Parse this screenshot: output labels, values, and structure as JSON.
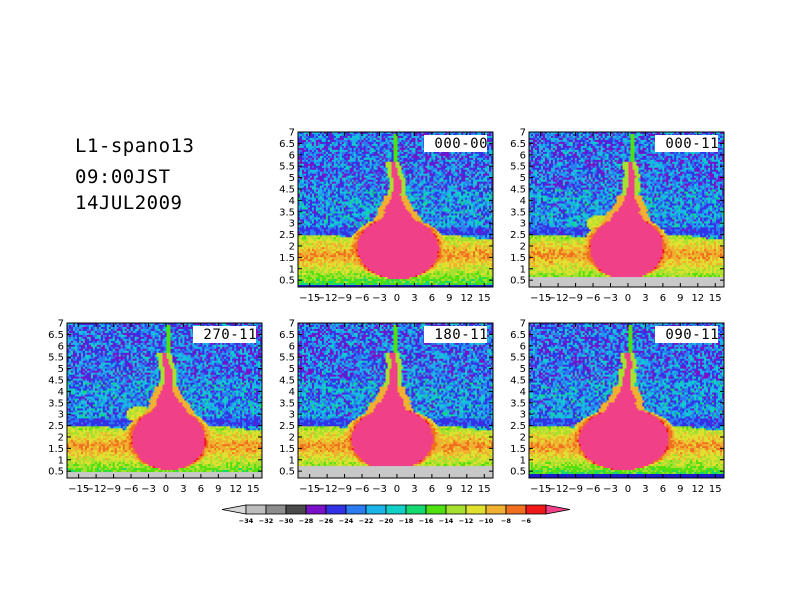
{
  "header": {
    "line1": "L1-spano13",
    "line2": "09:00JST",
    "line3": "14JUL2009"
  },
  "chart_data": {
    "type": "heatmap",
    "x_ticks": [
      -15,
      -12,
      -9,
      -6,
      -3,
      0,
      3,
      6,
      9,
      12,
      15
    ],
    "x_tick_labels": [
      "-15",
      "-12",
      "-9",
      "-6",
      "-3",
      "0",
      "3",
      "6",
      "9",
      "12",
      "15"
    ],
    "y_ticks": [
      0.5,
      1,
      1.5,
      2,
      2.5,
      3,
      3.5,
      4,
      4.5,
      5,
      5.5,
      6,
      6.5,
      7
    ],
    "y_tick_labels": [
      "0.5",
      "1",
      "1.5",
      "2",
      "2.5",
      "3",
      "3.5",
      "4",
      "4.5",
      "5",
      "5.5",
      "6",
      "6.5",
      "7"
    ],
    "xlim": [
      -17,
      16.5
    ],
    "ylim": [
      0.2,
      7
    ],
    "panels": [
      {
        "label": "000-00",
        "row": 0,
        "col": 1,
        "ground": 0.3,
        "groundColor": "#1c1ccc",
        "plume": [
          0.1,
          -0.2,
          -0.4
        ],
        "pool": 1.0,
        "bandLeft": 1.0,
        "bandRight": 1.0,
        "lobe": 0.2
      },
      {
        "label": "000-11",
        "row": 0,
        "col": 2,
        "ground": 0.65,
        "groundColor": "#c8c8c8",
        "plume": [
          -0.2,
          0.3,
          0.6
        ],
        "pool": 0.9,
        "bandLeft": 0.9,
        "bandRight": 1.0,
        "lobe": 0.9
      },
      {
        "label": "270-11",
        "row": 1,
        "col": 0,
        "ground": 0.45,
        "groundColor": "#c8c8c8",
        "plume": [
          0.6,
          0.2,
          0.0
        ],
        "pool": 0.9,
        "bandLeft": 1.0,
        "bandRight": 1.0,
        "lobe": 0.8
      },
      {
        "label": "180-11",
        "row": 1,
        "col": 1,
        "ground": 0.75,
        "groundColor": "#c8c8c8",
        "plume": [
          -1.2,
          -0.8,
          -0.5
        ],
        "pool": 1.0,
        "bandLeft": 1.0,
        "bandRight": 1.0,
        "lobe": 0.0
      },
      {
        "label": "090-11",
        "row": 1,
        "col": 2,
        "ground": 0.35,
        "groundColor": "#1c1ccc",
        "plume": [
          -1.0,
          -0.4,
          0.2
        ],
        "pool": 1.1,
        "bandLeft": 1.0,
        "bandRight": 1.0,
        "lobe": 0.0
      }
    ]
  },
  "colorbar": {
    "labels": [
      "-34",
      "-32",
      "-30",
      "-28",
      "-26",
      "-24",
      "-22",
      "-20",
      "-18",
      "-16",
      "-14",
      "-12",
      "-10",
      "-8",
      "-6"
    ],
    "colors": [
      "#bdbdbd",
      "#8c8c8c",
      "#4a4a4a",
      "#7a10c8",
      "#3232e6",
      "#2a7cf0",
      "#1ab4e8",
      "#10d0c8",
      "#14d870",
      "#50e010",
      "#a8e030",
      "#e0e030",
      "#f0b030",
      "#f07020",
      "#f01818",
      "#f04088"
    ],
    "low_color": "#d8d8d8"
  }
}
